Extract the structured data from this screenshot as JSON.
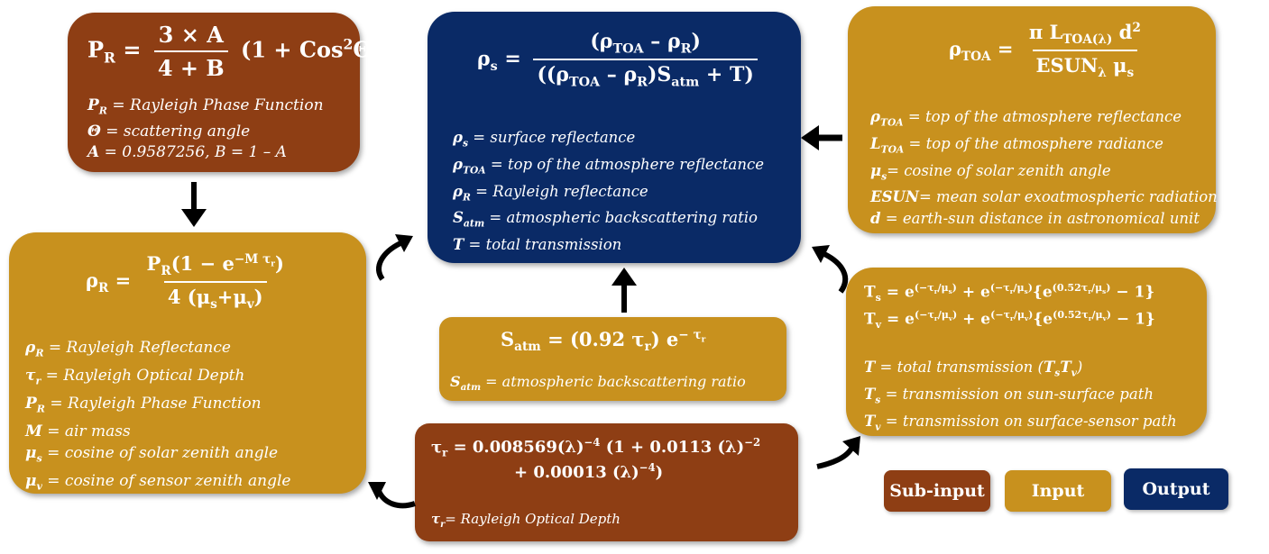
{
  "colors": {
    "sub_input": "#8e3e14",
    "input": "#c8911e",
    "output": "#0a2a66"
  },
  "phase": {
    "lhs": "P",
    "lhs_sub": "R",
    "eq": "=",
    "numerator": "3 × A",
    "denominator": "4 + B",
    "tail": "(1 +  Cos",
    "tail_sup": "2",
    "tail_end": "Θ)",
    "defs": [
      {
        "sym": "P",
        "sub": "R",
        "text": " = Rayleigh Phase Function"
      },
      {
        "sym": "Θ",
        "sub": "",
        "text": " = scattering angle"
      },
      {
        "sym": "A",
        "sub": "",
        "text": " = 0.9587256, B = 1 – A"
      }
    ]
  },
  "surface": {
    "lhs": "ρ",
    "lhs_sub": "s",
    "eq": "=",
    "numerator": "(ρ",
    "num_sub1": "TOA",
    "num_mid": " –  ρ",
    "num_sub2": "R",
    "num_end": ")",
    "den1": "((ρ",
    "den_sub1": "TOA",
    "den2": " –  ρ",
    "den_sub2": "R",
    "den3": ")S",
    "den_sub3": "atm",
    "den4": " + T)",
    "defs": [
      {
        "sym": "ρ",
        "sub": "s",
        "text": " = surface reflectance"
      },
      {
        "sym": "ρ",
        "sub": "TOA",
        "text": " = top of the atmosphere reflectance"
      },
      {
        "sym": "ρ",
        "sub": "R",
        "text": " = Rayleigh reflectance"
      },
      {
        "sym": "S",
        "sub": "atm",
        "text": " = atmospheric backscattering ratio"
      },
      {
        "sym": "T",
        "sub": "",
        "text": " = total transmission"
      }
    ]
  },
  "toa": {
    "lhs": "ρ",
    "lhs_sub": "TOA",
    "eq": "=",
    "numerator": "π L",
    "num_sub": "TOA(λ)",
    "num_end": " d",
    "num_sup": "2",
    "den": "ESUN",
    "den_sub": "λ",
    "den_end": " μ",
    "den_sub2": "s",
    "defs": [
      {
        "sym": "ρ",
        "sub": "TOA",
        "text": " = top of the atmosphere reflectance"
      },
      {
        "sym": "L",
        "sub": "TOA",
        "text": " = top of the atmosphere radiance"
      },
      {
        "sym": "μ",
        "sub": "s",
        "text": "= cosine of solar zenith angle"
      },
      {
        "sym": "ESUN",
        "sub": "",
        "text": "= mean solar exoatmospheric radiation"
      },
      {
        "sym": "d",
        "sub": "",
        "text": " = earth-sun distance in astronomical unit"
      }
    ]
  },
  "rayleigh": {
    "lhs": "ρ",
    "lhs_sub": "R",
    "eq": "=",
    "num1": "P",
    "num_sub1": "R",
    "num2": "(1 − e",
    "num_sup": "−M τ",
    "num_sup_sub": "r",
    "num3": ")",
    "den1": "4 (μ",
    "den_sub1": "s",
    "den2": "+μ",
    "den_sub2": "v",
    "den3": ")",
    "defs": [
      {
        "sym": "ρ",
        "sub": "R",
        "text": " = Rayleigh Reflectance"
      },
      {
        "sym": "τ",
        "sub": "r",
        "text": " = Rayleigh Optical Depth"
      },
      {
        "sym": "P",
        "sub": "R",
        "text": " = Rayleigh Phase Function"
      },
      {
        "sym": "M",
        "sub": "",
        "text": " = air mass"
      },
      {
        "sym": "μ",
        "sub": "s",
        "text": " = cosine of solar zenith angle"
      },
      {
        "sym": "μ",
        "sub": "v",
        "text": " = cosine of sensor zenith angle"
      }
    ]
  },
  "satm": {
    "lhs": "S",
    "lhs_sub": "atm",
    "rhs": "=   (0.92 τ",
    "rhs_sub": "r",
    "rhs_end": ") e",
    "rhs_sup": "− τ",
    "rhs_sup_sub": "r",
    "def_sym": "S",
    "def_sub": "atm",
    "def_text": " = atmospheric backscattering ratio"
  },
  "trans": {
    "ts_line": "T",
    "ts_sub": "s",
    "ts_rhs": " = e",
    "ts_sup1": "(−τ",
    "ts_sup1_r": "r",
    "ts_sup1_end": "/μ",
    "ts_sup1_s": "s",
    "ts_sup1_close": ")",
    "ts_plus": " +  e",
    "ts_brace": "{e",
    "ts_sup3": "(0.52τ",
    "ts_tail": " − 1}",
    "tv_sub": "v",
    "defs": [
      {
        "sym": "T",
        "sub": "",
        "text": " = total transmission (",
        "extra": "T",
        "extra_sub1": "s",
        "extra2": "T",
        "extra_sub2": "v",
        "close": ")"
      },
      {
        "sym": "T",
        "sub": "s",
        "text": " = transmission on sun-surface path"
      },
      {
        "sym": "T",
        "sub": "v",
        "text": " = transmission on surface-sensor path"
      }
    ]
  },
  "tau": {
    "line1_lhs": "τ",
    "line1_sub": "r",
    "line1": " =  0.008569(λ)",
    "line1_sup": "−4",
    "line1_b": " (1  +  0.0113 (λ)",
    "line1_sup2": "−2",
    "line2": "+  0.00013 (λ)",
    "line2_sup": "−4",
    "line2_end": ")",
    "def_sym": "τ",
    "def_sub": "r",
    "def_text": "= Rayleigh Optical Depth"
  },
  "legend": {
    "sub_input": "Sub-input",
    "input": "Input",
    "output": "Output"
  }
}
